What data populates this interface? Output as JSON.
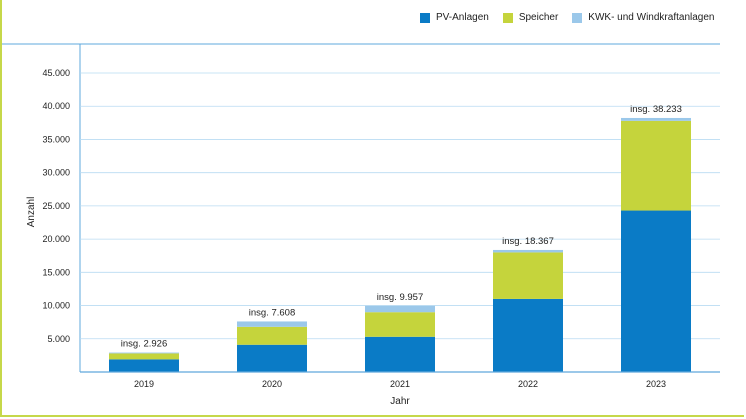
{
  "chart_data": {
    "type": "bar",
    "stacked": true,
    "categories": [
      "2019",
      "2020",
      "2021",
      "2022",
      "2023"
    ],
    "series": [
      {
        "name": "PV-Anlagen",
        "color": "#0a7bc6",
        "values": [
          1900,
          4100,
          5300,
          11000,
          24300
        ]
      },
      {
        "name": "Speicher",
        "color": "#c5d43c",
        "values": [
          900,
          2700,
          3700,
          7000,
          13500
        ]
      },
      {
        "name": "KWK- und Windkraftanlagen",
        "color": "#9bc8ea",
        "values": [
          126,
          808,
          957,
          367,
          433
        ]
      }
    ],
    "totals": [
      "insg. 2.926",
      "insg. 7.608",
      "insg. 9.957",
      "insg. 18.367",
      "insg. 38.233"
    ],
    "yticks": [
      "5.000",
      "10.000",
      "15.000",
      "20.000",
      "25.000",
      "30.000",
      "35.000",
      "40.000",
      "45.000"
    ],
    "ylim": [
      0,
      45000
    ],
    "xlabel": "Jahr",
    "ylabel": "Anzahl",
    "legend_position": "top-right",
    "grid": true
  }
}
